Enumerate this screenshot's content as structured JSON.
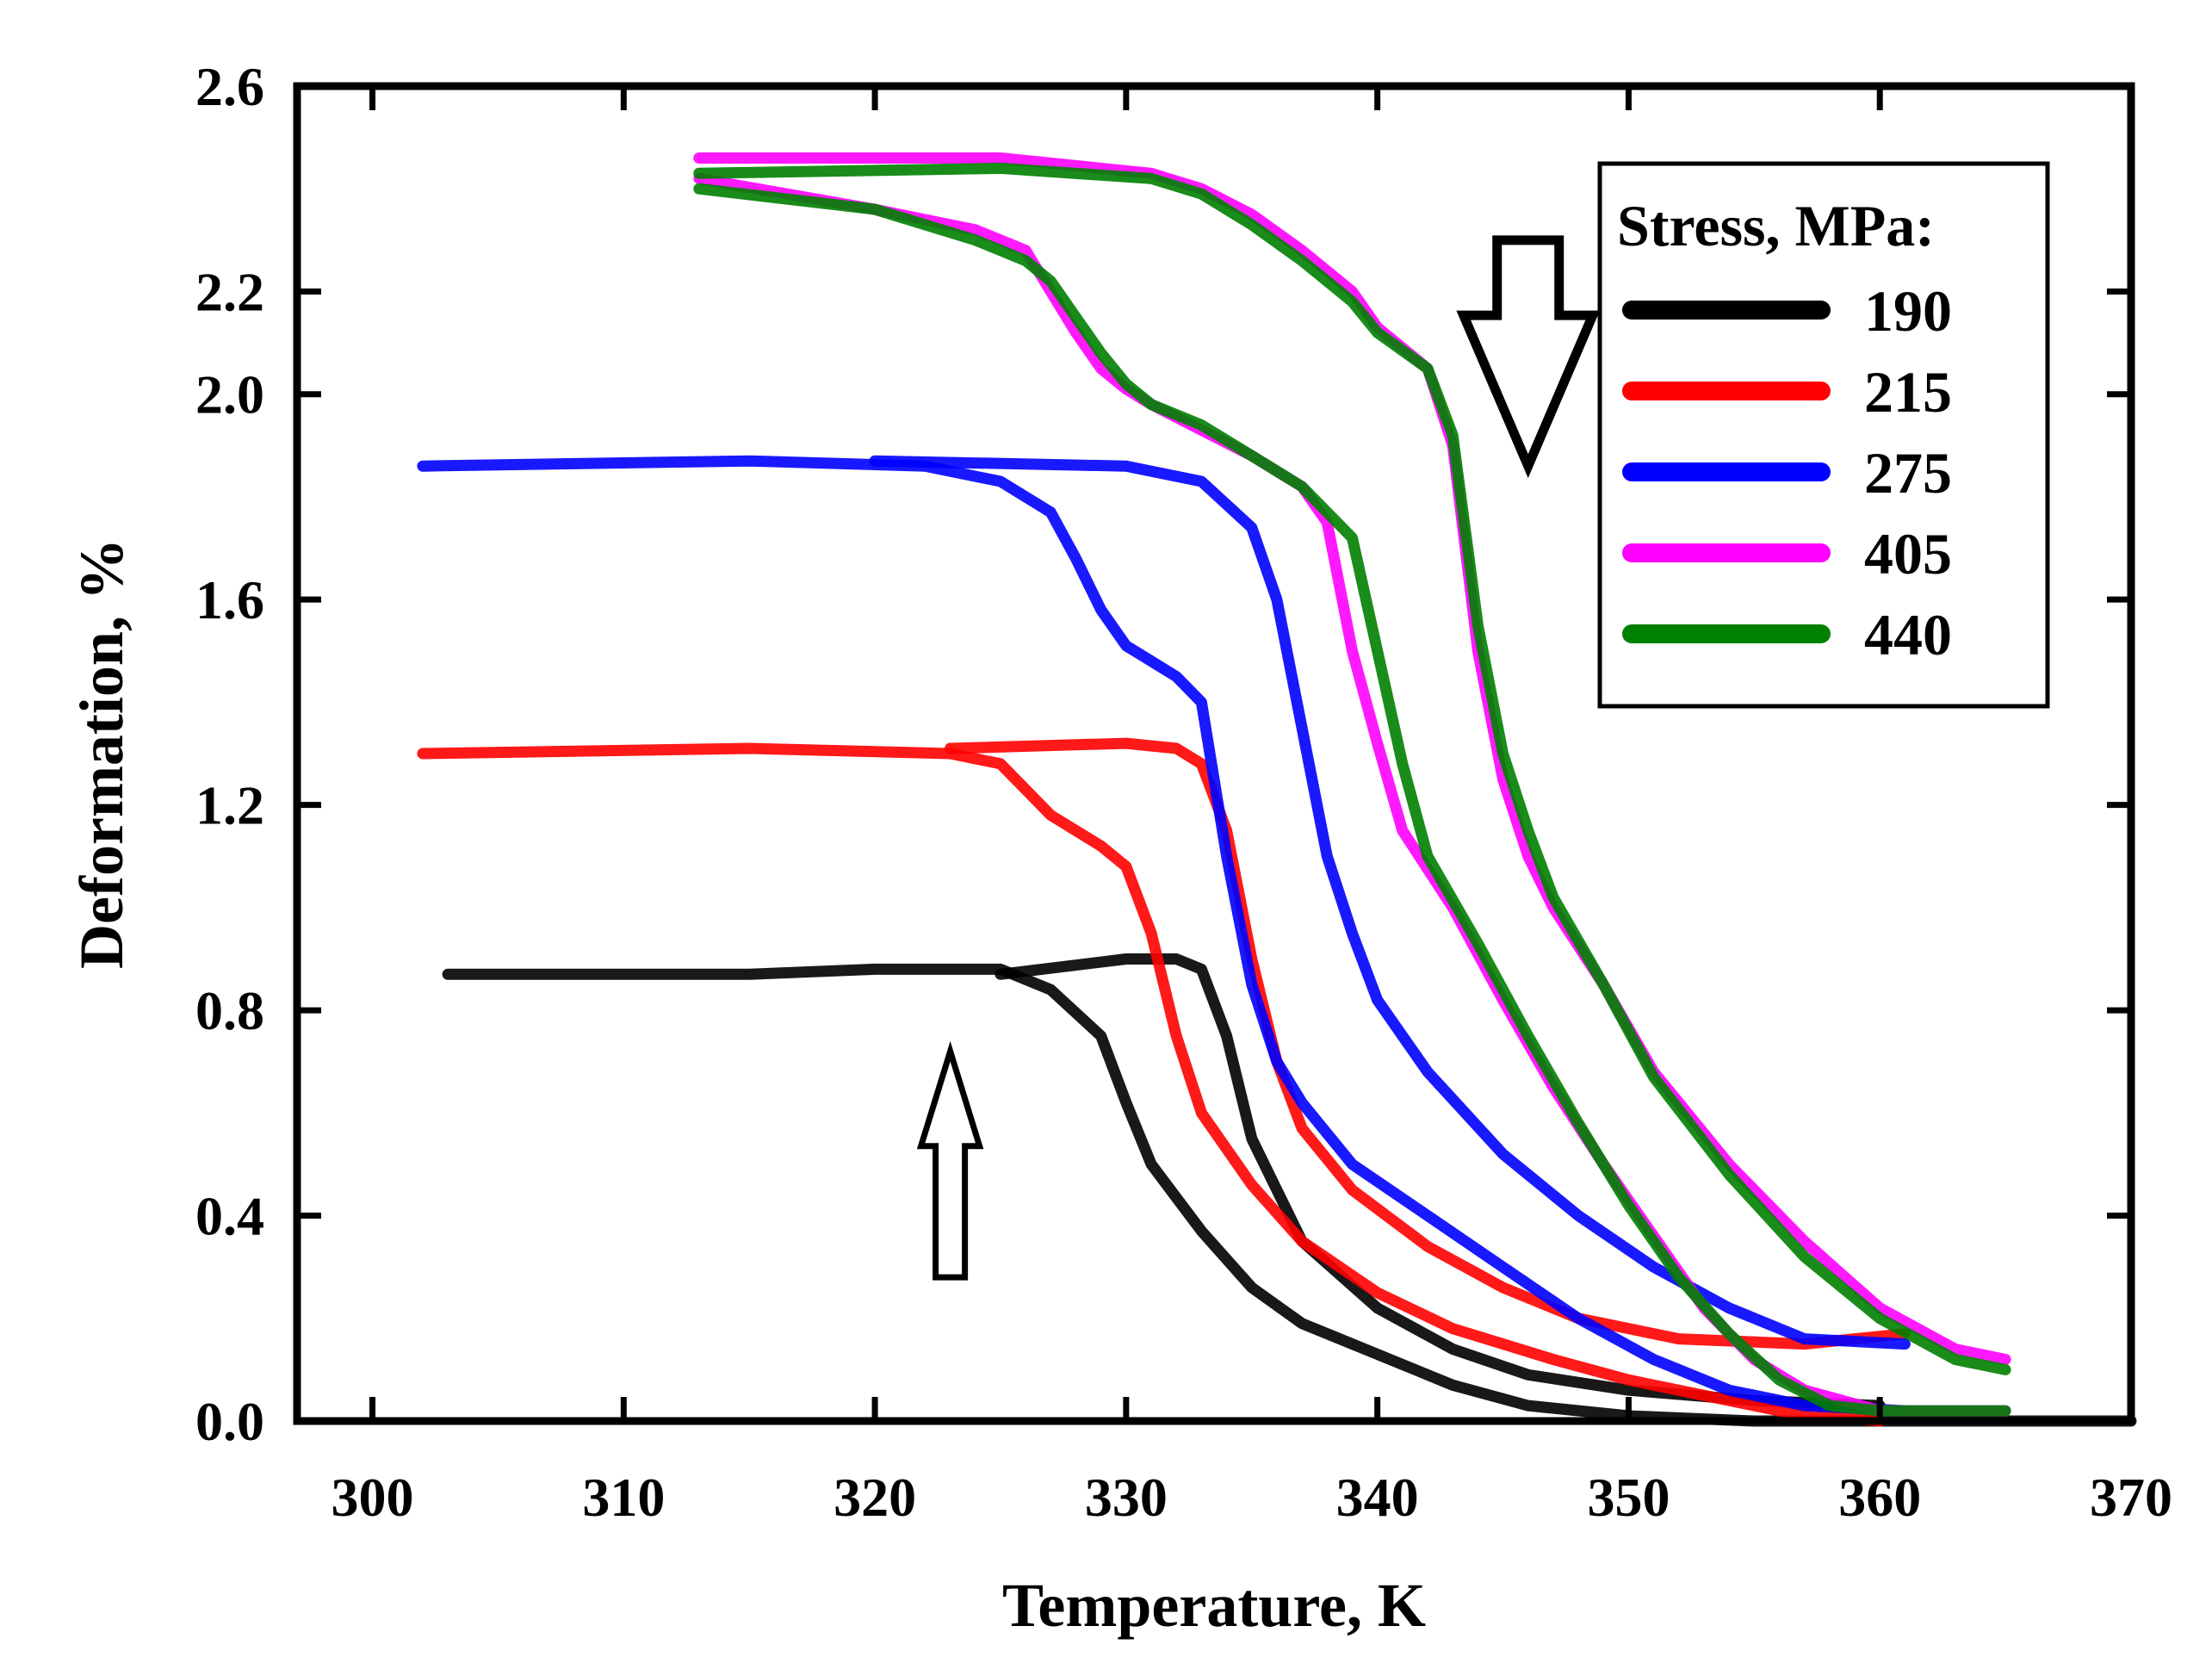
{
  "chart_data": {
    "type": "line",
    "title": "",
    "xlabel": "Temperature, K",
    "ylabel": "Deformation, %",
    "xlim": [
      297,
      370
    ],
    "ylim": [
      0.0,
      2.6
    ],
    "x_ticks": [
      300,
      310,
      320,
      330,
      340,
      350,
      360,
      370
    ],
    "x_tick_labels": [
      "300",
      "310",
      "320",
      "330",
      "340",
      "350",
      "360",
      "370"
    ],
    "y_ticks": [
      0.0,
      0.4,
      0.8,
      1.2,
      1.6,
      2.0,
      2.2,
      2.6
    ],
    "y_tick_labels": [
      "0.0",
      "0.4",
      "0.8",
      "1.2",
      "1.6",
      "2.0",
      "2.2",
      "2.6"
    ],
    "grid": false,
    "legend": {
      "title": "Stress, MPa:",
      "position": "top-right"
    },
    "series": [
      {
        "name": "190",
        "color": "#000000",
        "cooling": [
          [
            303,
            0.87
          ],
          [
            315,
            0.87
          ],
          [
            320,
            0.88
          ],
          [
            325,
            0.88
          ],
          [
            327,
            0.84
          ],
          [
            329,
            0.75
          ],
          [
            330,
            0.62
          ],
          [
            331,
            0.5
          ],
          [
            333,
            0.37
          ],
          [
            335,
            0.26
          ],
          [
            337,
            0.19
          ],
          [
            340,
            0.13
          ],
          [
            343,
            0.07
          ],
          [
            346,
            0.03
          ],
          [
            350,
            0.01
          ],
          [
            355,
            0.0
          ],
          [
            360,
            0.0
          ],
          [
            365,
            0.0
          ],
          [
            370,
            0.0
          ]
        ],
        "heating": [
          [
            325,
            0.87
          ],
          [
            330,
            0.9
          ],
          [
            332,
            0.9
          ],
          [
            333,
            0.88
          ],
          [
            334,
            0.75
          ],
          [
            335,
            0.55
          ],
          [
            336,
            0.45
          ],
          [
            337,
            0.35
          ],
          [
            340,
            0.22
          ],
          [
            343,
            0.14
          ],
          [
            346,
            0.09
          ],
          [
            350,
            0.06
          ],
          [
            355,
            0.04
          ],
          [
            360,
            0.03
          ]
        ]
      },
      {
        "name": "215",
        "color": "#ff0000",
        "cooling": [
          [
            302,
            1.3
          ],
          [
            315,
            1.31
          ],
          [
            323,
            1.3
          ],
          [
            325,
            1.28
          ],
          [
            327,
            1.18
          ],
          [
            329,
            1.12
          ],
          [
            330,
            1.08
          ],
          [
            331,
            0.95
          ],
          [
            332,
            0.75
          ],
          [
            333,
            0.6
          ],
          [
            335,
            0.46
          ],
          [
            337,
            0.35
          ],
          [
            340,
            0.25
          ],
          [
            343,
            0.18
          ],
          [
            347,
            0.12
          ],
          [
            350,
            0.08
          ],
          [
            353,
            0.05
          ],
          [
            356,
            0.02
          ],
          [
            360,
            0.0
          ]
        ],
        "heating": [
          [
            323,
            1.31
          ],
          [
            330,
            1.32
          ],
          [
            332,
            1.31
          ],
          [
            333,
            1.28
          ],
          [
            334,
            1.15
          ],
          [
            335,
            0.9
          ],
          [
            336,
            0.7
          ],
          [
            337,
            0.57
          ],
          [
            339,
            0.45
          ],
          [
            342,
            0.34
          ],
          [
            345,
            0.26
          ],
          [
            348,
            0.2
          ],
          [
            352,
            0.16
          ],
          [
            357,
            0.15
          ],
          [
            361,
            0.17
          ]
        ]
      },
      {
        "name": "275",
        "color": "#0000ff",
        "cooling": [
          [
            302,
            1.86
          ],
          [
            315,
            1.87
          ],
          [
            322,
            1.86
          ],
          [
            325,
            1.83
          ],
          [
            327,
            1.77
          ],
          [
            328,
            1.68
          ],
          [
            329,
            1.58
          ],
          [
            330,
            1.51
          ],
          [
            331,
            1.48
          ],
          [
            332,
            1.45
          ],
          [
            333,
            1.4
          ],
          [
            334,
            1.1
          ],
          [
            335,
            0.85
          ],
          [
            336,
            0.7
          ],
          [
            337,
            0.62
          ],
          [
            339,
            0.5
          ],
          [
            342,
            0.4
          ],
          [
            345,
            0.3
          ],
          [
            348,
            0.2
          ],
          [
            351,
            0.12
          ],
          [
            354,
            0.06
          ],
          [
            357,
            0.03
          ],
          [
            361,
            0.02
          ]
        ],
        "heating": [
          [
            320,
            1.87
          ],
          [
            330,
            1.86
          ],
          [
            333,
            1.83
          ],
          [
            335,
            1.74
          ],
          [
            336,
            1.6
          ],
          [
            337,
            1.35
          ],
          [
            338,
            1.1
          ],
          [
            339,
            0.95
          ],
          [
            340,
            0.82
          ],
          [
            342,
            0.68
          ],
          [
            345,
            0.52
          ],
          [
            348,
            0.4
          ],
          [
            351,
            0.3
          ],
          [
            354,
            0.22
          ],
          [
            357,
            0.16
          ],
          [
            361,
            0.15
          ]
        ]
      },
      {
        "name": "405",
        "color": "#ff00ff",
        "cooling": [
          [
            313,
            2.42
          ],
          [
            320,
            2.36
          ],
          [
            324,
            2.32
          ],
          [
            326,
            2.28
          ],
          [
            327,
            2.2
          ],
          [
            328,
            2.12
          ],
          [
            329,
            2.05
          ],
          [
            330,
            2.01
          ],
          [
            331,
            1.98
          ],
          [
            333,
            1.93
          ],
          [
            335,
            1.88
          ],
          [
            337,
            1.82
          ],
          [
            338,
            1.75
          ],
          [
            339,
            1.5
          ],
          [
            340,
            1.32
          ],
          [
            341,
            1.15
          ],
          [
            343,
            1.0
          ],
          [
            345,
            0.82
          ],
          [
            347,
            0.65
          ],
          [
            349,
            0.5
          ],
          [
            351,
            0.36
          ],
          [
            353,
            0.22
          ],
          [
            355,
            0.12
          ],
          [
            357,
            0.06
          ],
          [
            360,
            0.02
          ],
          [
            365,
            0.02
          ]
        ],
        "heating": [
          [
            313,
            2.46
          ],
          [
            325,
            2.46
          ],
          [
            331,
            2.43
          ],
          [
            333,
            2.4
          ],
          [
            335,
            2.35
          ],
          [
            337,
            2.28
          ],
          [
            339,
            2.2
          ],
          [
            340,
            2.13
          ],
          [
            342,
            2.05
          ],
          [
            343,
            1.9
          ],
          [
            344,
            1.5
          ],
          [
            345,
            1.25
          ],
          [
            346,
            1.1
          ],
          [
            347,
            1.0
          ],
          [
            349,
            0.85
          ],
          [
            351,
            0.68
          ],
          [
            354,
            0.5
          ],
          [
            357,
            0.35
          ],
          [
            360,
            0.22
          ],
          [
            363,
            0.14
          ],
          [
            365,
            0.12
          ]
        ]
      },
      {
        "name": "440",
        "color": "#008000",
        "cooling": [
          [
            313,
            2.4
          ],
          [
            320,
            2.36
          ],
          [
            324,
            2.3
          ],
          [
            326,
            2.26
          ],
          [
            327,
            2.22
          ],
          [
            328,
            2.15
          ],
          [
            329,
            2.08
          ],
          [
            330,
            2.02
          ],
          [
            331,
            1.98
          ],
          [
            333,
            1.94
          ],
          [
            335,
            1.88
          ],
          [
            337,
            1.82
          ],
          [
            339,
            1.72
          ],
          [
            340,
            1.5
          ],
          [
            341,
            1.28
          ],
          [
            342,
            1.1
          ],
          [
            344,
            0.93
          ],
          [
            346,
            0.75
          ],
          [
            348,
            0.58
          ],
          [
            350,
            0.42
          ],
          [
            352,
            0.28
          ],
          [
            354,
            0.17
          ],
          [
            356,
            0.08
          ],
          [
            358,
            0.03
          ],
          [
            360,
            0.02
          ],
          [
            365,
            0.02
          ]
        ],
        "heating": [
          [
            313,
            2.43
          ],
          [
            325,
            2.44
          ],
          [
            331,
            2.42
          ],
          [
            333,
            2.39
          ],
          [
            335,
            2.33
          ],
          [
            337,
            2.26
          ],
          [
            339,
            2.18
          ],
          [
            340,
            2.12
          ],
          [
            342,
            2.05
          ],
          [
            343,
            1.92
          ],
          [
            344,
            1.55
          ],
          [
            345,
            1.3
          ],
          [
            346,
            1.15
          ],
          [
            347,
            1.02
          ],
          [
            349,
            0.85
          ],
          [
            351,
            0.67
          ],
          [
            354,
            0.48
          ],
          [
            357,
            0.32
          ],
          [
            360,
            0.2
          ],
          [
            363,
            0.12
          ],
          [
            365,
            0.1
          ]
        ]
      }
    ],
    "annotations": [
      {
        "type": "arrow",
        "direction": "down",
        "x": 346,
        "y_from": 2.3,
        "y_to": 1.86,
        "meaning": "cooling"
      },
      {
        "type": "arrow",
        "direction": "up",
        "x": 323,
        "y_from": 0.28,
        "y_to": 0.72,
        "meaning": "heating"
      }
    ]
  }
}
